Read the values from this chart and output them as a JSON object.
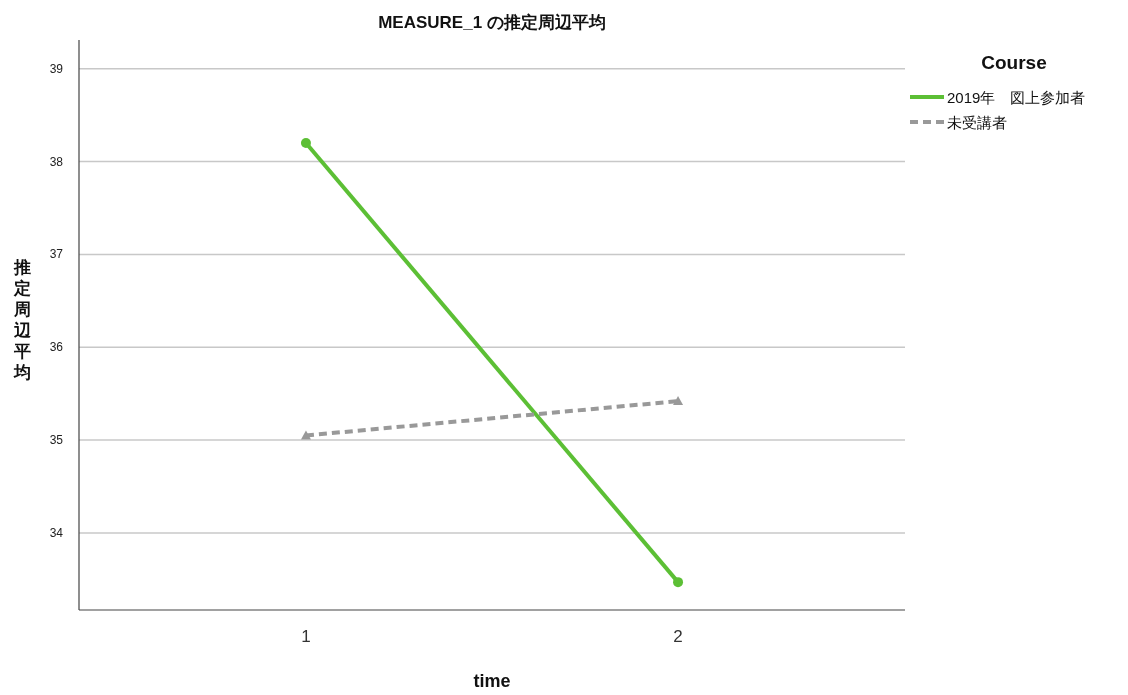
{
  "chart_data": {
    "type": "line",
    "title": "MEASURE_1 の推定周辺平均",
    "xlabel": "time",
    "ylabel": "推定周辺平均",
    "legend_title": "Course",
    "categories": [
      "1",
      "2"
    ],
    "series": [
      {
        "name": "2019年　図上参加者",
        "color": "#5cbf35",
        "values": [
          38.2,
          33.47
        ],
        "marker": "circle",
        "line_style": "solid"
      },
      {
        "name": "未受講者",
        "color": "#999999",
        "values": [
          35.05,
          35.42
        ],
        "marker": "triangle",
        "line_style": "dashed"
      }
    ],
    "ylim": [
      33.17,
      39.31
    ],
    "yticks": [
      34,
      35,
      36,
      37,
      38,
      39
    ],
    "grid": "y",
    "legend": "top right"
  }
}
